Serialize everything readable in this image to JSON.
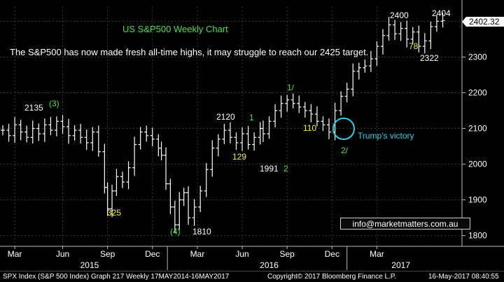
{
  "chart_data": {
    "type": "line",
    "title": "US S&P500 Weekly Chart",
    "subtitle": "The S&P500 has now made fresh all-time highs, it may struggle to reach our 2425 target.",
    "ylim": [
      1770,
      2440
    ],
    "y_ticks": [
      1800,
      1900,
      2000,
      2100,
      2200,
      2300,
      2400
    ],
    "last_price": "2402.32",
    "x_month_labels": [
      {
        "label": "Mar",
        "x": 0.8
      },
      {
        "label": "Jun",
        "x": 4
      },
      {
        "label": "Sep",
        "x": 7
      },
      {
        "label": "Dec",
        "x": 10
      },
      {
        "label": "Mar",
        "x": 13
      },
      {
        "label": "Jun",
        "x": 16
      },
      {
        "label": "Sep",
        "x": 19
      },
      {
        "label": "Dec",
        "x": 22
      },
      {
        "label": "Mar",
        "x": 25
      }
    ],
    "x_year_labels": [
      {
        "label": "2015",
        "x": 5.8
      },
      {
        "label": "2016",
        "x": 17.8
      },
      {
        "label": "2017",
        "x": 26.6
      }
    ],
    "xlim": [
      0,
      30.5
    ],
    "series": [
      {
        "x": [
          0,
          0.4,
          0.8,
          1.2,
          1.6,
          2,
          2.4,
          2.8,
          3.2,
          3.6,
          4,
          4.4,
          4.8,
          5.2,
          5.6,
          6,
          6.4,
          6.8,
          7,
          7.3,
          7.6,
          8,
          8.4,
          8.8,
          9.2,
          9.6,
          10,
          10.4,
          10.6,
          10.9,
          11.2,
          11.5,
          11.8,
          12.1,
          12.4,
          12.8,
          13.2,
          13.6,
          14,
          14.4,
          14.8,
          15.2,
          15.6,
          16,
          16.4,
          16.8,
          17.2,
          17.4,
          17.8,
          18.2,
          18.6,
          19,
          19.4,
          19.8,
          20.2,
          20.6,
          21,
          21.4,
          21.8,
          22.2,
          22.6,
          23,
          23.4,
          23.8,
          24.2,
          24.6,
          25,
          25.4,
          25.8,
          26.2,
          26.6,
          27,
          27.4,
          27.8,
          28.2,
          28.6,
          29,
          29.4
        ],
        "values": [
          2095,
          2080,
          2110,
          2090,
          2075,
          2100,
          2085,
          2110,
          2095,
          2120,
          2105,
          2080,
          2095,
          2075,
          2060,
          2090,
          2035,
          1935,
          1875,
          1925,
          1965,
          1950,
          1990,
          2055,
          2090,
          2080,
          2070,
          2045,
          2025,
          1945,
          1880,
          1830,
          1900,
          1920,
          1850,
          1880,
          1925,
          1985,
          2045,
          2070,
          2095,
          2075,
          2060,
          2085,
          2055,
          2075,
          2100,
          2085,
          2120,
          2150,
          2170,
          2180,
          2170,
          2160,
          2150,
          2140,
          2120,
          2110,
          2090,
          2150,
          2190,
          2210,
          2260,
          2270,
          2275,
          2295,
          2330,
          2360,
          2390,
          2365,
          2380,
          2350,
          2370,
          2330,
          2345,
          2385,
          2400,
          2402
        ]
      }
    ]
  },
  "annotations": {
    "a2135": "2135",
    "a3": "(3)",
    "a325": "325",
    "a4": "(4)",
    "a1810": "1810",
    "a2120": "2120",
    "a1": "1",
    "a129": "129",
    "a1991": "1991",
    "a2": "2",
    "a1slash": "1/",
    "a110": "110",
    "trump": "Trump's victory",
    "a2slash": "2/",
    "a2400": "2400",
    "a2404": "2404",
    "a78": "78",
    "a2322": "2322"
  },
  "email": "info@marketmatters.com.au",
  "footer": {
    "left": "SPX Index (S&P 500 Index) Graph 217  Weekly 17MAY2014-16MAY2017",
    "right": "Copyright© 2017 Bloomberg Finance L.P.",
    "date": "16-May-2017 08:40:55"
  },
  "colors": {
    "background": "#000000",
    "candle": "#ffffff",
    "title": "#46e046",
    "yellow_label": "#f5f03c",
    "green_label": "#46e046",
    "circle": "#2ad0e8",
    "grid": "#3a3a3a"
  }
}
